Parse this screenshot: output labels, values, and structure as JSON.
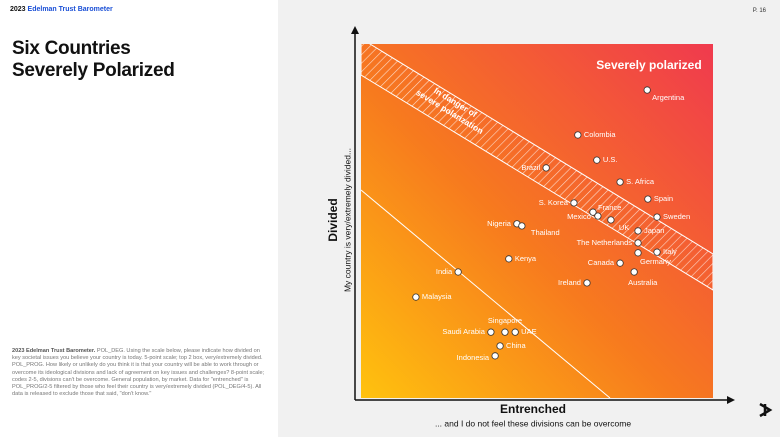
{
  "header": {
    "brand_year": "2023",
    "brand": "Edelman Trust Barometer",
    "page": "P. 16"
  },
  "title": [
    "Six Countries",
    "Severely Polarized"
  ],
  "footnote": {
    "source": "2023 Edelman Trust Barometer.",
    "text": "POL_DEG. Using the scale below, please indicate how divided on key societal issues you believe your country is today. 5-point scale; top 2 box, very/extremely divided. POL_PROG. How likely or unlikely do you think it is that your country will be able to work through or overcome its ideological divisions and lack of agreement on key issues and challenges? 8-point scale; codes 2-5, divisions can't be overcome. General population, by market. Data for \"entrenched\" is POL_PROG/2-5 filtered by those who feel their country is very/extremely divided (POL_DEG/4-5). All data is released to exclude those that said, \"don't know.\""
  },
  "chart_data": {
    "type": "scatter",
    "y_label": "Divided",
    "y_sublabel": "My country is very/extremely divided...",
    "x_label": "Entrenched",
    "x_sublabel": "... and I do not feel these divisions can be overcome",
    "annotations": [
      "Severely polarized",
      "In danger of",
      "severe polarization"
    ],
    "labels": [
      "Argentina",
      "Colombia",
      "Brazil",
      "U.S.",
      "S. Africa",
      "Spain",
      "S. Korea",
      "France",
      "Mexico",
      "UK",
      "Sweden",
      "Japan",
      "Nigeria",
      "Thailand",
      "The Netherlands",
      "Italy",
      "Germany",
      "Kenya",
      "Canada",
      "Australia",
      "India",
      "Ireland",
      "Malaysia",
      "Saudi Arabia",
      "Singapore",
      "UAE",
      "China",
      "Indonesia"
    ],
    "x": [
      81.3,
      61.6,
      52.6,
      67.0,
      73.6,
      81.5,
      60.5,
      65.9,
      67.3,
      71.0,
      84.1,
      78.7,
      44.3,
      45.7,
      78.7,
      84.1,
      78.7,
      42.0,
      73.6,
      77.6,
      27.6,
      64.2,
      15.6,
      36.9,
      40.9,
      43.8,
      39.5,
      38.1
    ],
    "y": [
      87.0,
      74.3,
      65.0,
      67.2,
      61.0,
      56.2,
      55.1,
      52.5,
      51.4,
      50.3,
      51.1,
      47.2,
      49.2,
      48.6,
      43.8,
      41.2,
      41.0,
      39.3,
      38.1,
      35.6,
      35.6,
      32.5,
      28.5,
      18.6,
      18.6,
      18.6,
      14.7,
      11.9
    ],
    "xlim": [
      0,
      100
    ],
    "ylim": [
      0,
      100
    ],
    "color": "#ffffff"
  }
}
